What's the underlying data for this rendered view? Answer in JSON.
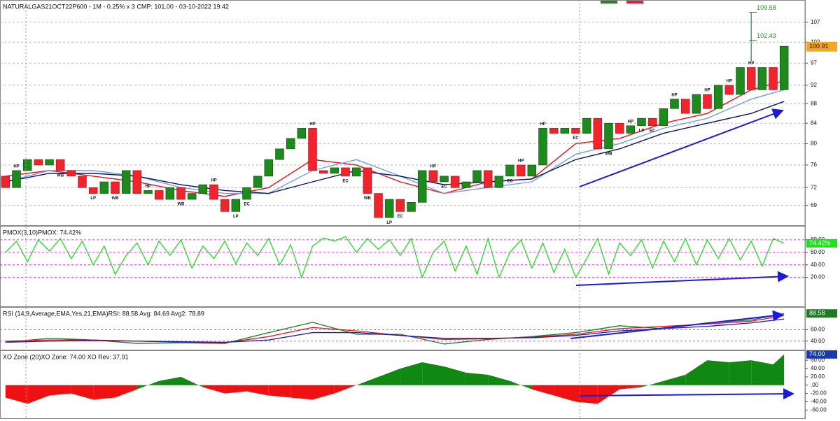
{
  "chart_data": [
    {
      "type": "candles",
      "title": "NATURALGAS21OCT22P600 - 1M - 0.25% x 3 CMP: 101.00 - 03-10-2022 19:42",
      "log": true,
      "grid": true,
      "ylim": [
        65.8,
        111.9
      ],
      "yticks": [
        69,
        72,
        76,
        80,
        84,
        88,
        92,
        97,
        102,
        107
      ],
      "open": [
        74,
        72,
        75,
        77,
        76,
        77,
        75,
        74,
        72,
        71,
        73,
        71,
        75,
        71,
        71.5,
        70,
        72,
        70,
        71,
        72.5,
        70,
        68,
        70,
        72,
        74,
        77,
        79,
        81,
        83,
        75,
        74.5,
        75.5,
        74,
        75.5,
        71,
        67,
        70,
        68,
        69.5,
        75,
        73,
        74,
        72,
        73,
        75,
        72,
        74,
        76,
        74,
        76,
        83,
        82,
        83,
        82,
        85,
        79,
        84,
        82,
        83.5,
        85,
        83.5,
        87,
        89,
        86,
        90,
        87,
        92,
        90,
        96,
        91,
        96,
        91
      ],
      "close": [
        72,
        75,
        77,
        76,
        77,
        75,
        74,
        72,
        71,
        73,
        71,
        75,
        71,
        71.5,
        70,
        72,
        70,
        71,
        72.5,
        70,
        68,
        70,
        72,
        74,
        77,
        79,
        81,
        83,
        75,
        74.5,
        75.5,
        74,
        75.5,
        71,
        67,
        70,
        68,
        69.5,
        75,
        73,
        74,
        72,
        73,
        75,
        72,
        74,
        76,
        74,
        76,
        83,
        82,
        83,
        82,
        85,
        79,
        84,
        82,
        83.5,
        85,
        83.5,
        87,
        89,
        86,
        90,
        87,
        92,
        90,
        96,
        91,
        96,
        91,
        101
      ],
      "up_color": "#1e8a1e",
      "down_color": "#f0242c",
      "lines": [
        {
          "color": "#e8101c",
          "x": [
            0,
            4,
            8,
            12,
            16,
            20,
            24,
            28,
            32,
            36,
            40,
            44,
            48,
            52,
            56,
            60,
            64,
            68,
            71
          ],
          "values": [
            74,
            75,
            74,
            73,
            71.5,
            70.5,
            72,
            77,
            76,
            73,
            71,
            73,
            73.5,
            80,
            81,
            84,
            86,
            91,
            93
          ]
        },
        {
          "color": "#6f9ee8",
          "x": [
            0,
            4,
            8,
            12,
            16,
            20,
            24,
            28,
            32,
            36,
            40,
            44,
            48,
            52,
            56,
            60,
            64,
            68,
            71
          ],
          "values": [
            73,
            75,
            75,
            74,
            72,
            71,
            71,
            75,
            77,
            74,
            71,
            72,
            73,
            78,
            80,
            83,
            85,
            89,
            91
          ]
        },
        {
          "color": "#0c1468",
          "x": [
            0,
            4,
            8,
            12,
            16,
            20,
            24,
            28,
            32,
            36,
            40,
            44,
            48,
            52,
            56,
            60,
            64,
            68,
            71
          ],
          "values": [
            73,
            74.5,
            74.5,
            74,
            72.5,
            71.5,
            71,
            73,
            75,
            74,
            72.5,
            73,
            73.5,
            77,
            79,
            82,
            84,
            86,
            88.5
          ]
        }
      ],
      "annotations": [
        {
          "text": "HP",
          "bar": 1
        },
        {
          "text": "WB",
          "bar": 5
        },
        {
          "text": "HP",
          "bar": 13
        },
        {
          "text": "LP",
          "bar": 8
        },
        {
          "text": "WB",
          "bar": 10
        },
        {
          "text": "HP",
          "bar": 19
        },
        {
          "text": "WB",
          "bar": 16
        },
        {
          "text": "LP",
          "bar": 21
        },
        {
          "text": "EC",
          "bar": 22
        },
        {
          "text": "HP",
          "bar": 28
        },
        {
          "text": "EC",
          "bar": 31
        },
        {
          "text": "WB",
          "bar": 33
        },
        {
          "text": "LP",
          "bar": 35
        },
        {
          "text": "EC",
          "bar": 36
        },
        {
          "text": "HP",
          "bar": 39
        },
        {
          "text": "EC",
          "bar": 40
        },
        {
          "text": "EC",
          "bar": 46
        },
        {
          "text": "HP",
          "bar": 47
        },
        {
          "text": "HP",
          "bar": 49
        },
        {
          "text": "EC",
          "bar": 52
        },
        {
          "text": "WB",
          "bar": 55
        },
        {
          "text": "HP",
          "bar": 57
        },
        {
          "text": "LP",
          "bar": 58
        },
        {
          "text": "EC",
          "bar": 59
        },
        {
          "text": "HP",
          "bar": 61
        },
        {
          "text": "HP",
          "bar": 64
        },
        {
          "text": "HP",
          "bar": 66
        },
        {
          "text": "HP",
          "bar": 68
        }
      ],
      "target_bar": 68,
      "targets": [
        109.58,
        102.43
      ],
      "target_color": "#2a8a2a",
      "last_price": 100.91,
      "last_color": "#f5a623"
    },
    {
      "type": "line",
      "title": "PMOX(3,10)PMOX: 74.42%",
      "ylim": [
        5,
        100
      ],
      "grid": true,
      "grid_color": "#e040e0",
      "yticks": [
        {
          "value": 20,
          "label": "20.00"
        },
        {
          "value": 40,
          "label": "40.00"
        },
        {
          "value": 60,
          "label": "60.00"
        },
        {
          "value": 80,
          "label": "80.00"
        }
      ],
      "series": [
        {
          "color": "#22dd22",
          "values": [
            60,
            78,
            45,
            80,
            62,
            82,
            50,
            78,
            40,
            70,
            25,
            55,
            75,
            40,
            78,
            55,
            80,
            35,
            70,
            50,
            78,
            42,
            75,
            55,
            82,
            40,
            72,
            20,
            70,
            83,
            78,
            85,
            60,
            82,
            65,
            80,
            55,
            82,
            20,
            60,
            78,
            30,
            70,
            25,
            82,
            20,
            60,
            80,
            35,
            75,
            28,
            65,
            20,
            50,
            82,
            25,
            75,
            55,
            80,
            35,
            78,
            45,
            82,
            40,
            80,
            50,
            82,
            48,
            78,
            38,
            82,
            74.42
          ]
        }
      ],
      "last": 74.42,
      "last_label": "74.42%",
      "last_color": "#22dd22"
    },
    {
      "type": "line",
      "title": "RSI (14,9,Average,EMA,Yes,21,EMA)RSI: 88.58 Avg: 84.69 Avg2: 78.89",
      "ylim": [
        25,
        95
      ],
      "grid": true,
      "grid_color": "#e040e0",
      "yticks": [
        {
          "value": 40,
          "label": "40.00"
        },
        {
          "value": 60,
          "label": "60.00"
        }
      ],
      "series": [
        {
          "color": "#1e7a1e",
          "x": [
            0,
            4,
            8,
            12,
            16,
            20,
            24,
            28,
            32,
            36,
            40,
            44,
            48,
            52,
            56,
            60,
            64,
            68,
            71
          ],
          "values": [
            38,
            45,
            42,
            36,
            37,
            36,
            55,
            73,
            52,
            52,
            35,
            43,
            48,
            55,
            67,
            62,
            72,
            77,
            88.58
          ]
        },
        {
          "color": "#e8101c",
          "x": [
            0,
            4,
            8,
            12,
            16,
            20,
            24,
            28,
            32,
            36,
            40,
            44,
            48,
            52,
            56,
            60,
            64,
            68,
            71
          ],
          "values": [
            40,
            42,
            42,
            40,
            38,
            37,
            48,
            64,
            58,
            50,
            43,
            44,
            47,
            52,
            62,
            66,
            70,
            75,
            84.69
          ]
        },
        {
          "color": "#1a1ab8",
          "x": [
            0,
            4,
            8,
            12,
            16,
            20,
            24,
            28,
            32,
            36,
            40,
            44,
            48,
            52,
            56,
            60,
            64,
            68,
            71
          ],
          "values": [
            38,
            40,
            41,
            40,
            39,
            38,
            42,
            55,
            55,
            50,
            45,
            45,
            46,
            50,
            58,
            62,
            66,
            72,
            78.89
          ]
        }
      ],
      "last": 88.58,
      "last_label": "88.58",
      "last_color": "#1e7a1e"
    },
    {
      "type": "area",
      "title": "XO Zone (20)XO Zone: 74.00 XO Rev: 37.91",
      "ylim": [
        -78,
        77
      ],
      "grid": false,
      "yticks": [
        {
          "value": -60,
          "label": "-60.00"
        },
        {
          "value": -40,
          "label": "-40.00"
        },
        {
          "value": -20,
          "label": "-20.00"
        },
        {
          "value": 0,
          "label": ".00"
        },
        {
          "value": 20,
          "label": "20.00"
        },
        {
          "value": 40,
          "label": "40.00"
        },
        {
          "value": 60,
          "label": "60.00"
        }
      ],
      "x": [
        0,
        2,
        4,
        6,
        8,
        10,
        12,
        14,
        16,
        18,
        20,
        22,
        24,
        26,
        28,
        30,
        32,
        34,
        36,
        38,
        40,
        42,
        44,
        46,
        48,
        50,
        52,
        54,
        56,
        58,
        60,
        62,
        64,
        66,
        68,
        70,
        71
      ],
      "values": [
        -30,
        -45,
        -25,
        -20,
        -35,
        -30,
        -10,
        10,
        20,
        -5,
        -20,
        -15,
        -25,
        -30,
        -35,
        -20,
        0,
        20,
        40,
        55,
        45,
        30,
        25,
        10,
        -10,
        -25,
        -40,
        -45,
        -10,
        -5,
        10,
        25,
        60,
        55,
        60,
        50,
        74
      ],
      "pos_color": "#118811",
      "neg_color": "#ee1111",
      "last": 74,
      "last_label": "74.00",
      "last_color": "#1a3aa8"
    }
  ]
}
